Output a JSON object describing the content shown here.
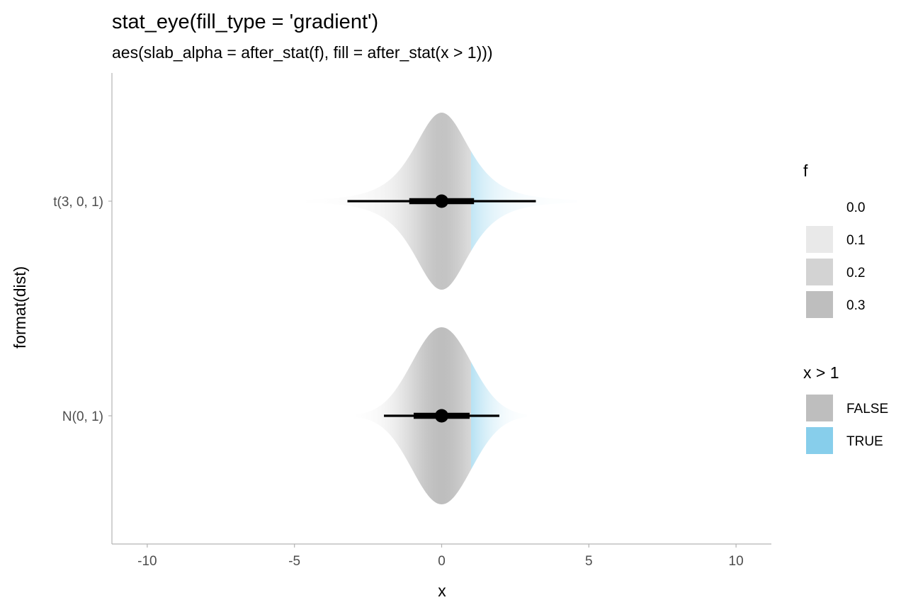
{
  "chart_data": {
    "type": "eye",
    "title": "stat_eye(fill_type = 'gradient')",
    "subtitle": "aes(slab_alpha = after_stat(f), fill = after_stat(x > 1)))",
    "xlabel": "x",
    "ylabel": "format(dist)",
    "xlim": [
      -11.2,
      11.2
    ],
    "x_ticks": [
      -10,
      -5,
      0,
      5,
      10
    ],
    "x_tick_labels": [
      "-10",
      "-5",
      "0",
      "5",
      "10"
    ],
    "categories": [
      "t(3, 0, 1)",
      "N(0, 1)"
    ],
    "grid": false,
    "threshold": 1,
    "colors": {
      "false": "#bebebe",
      "true": "#87ceeb",
      "interval": "#000000",
      "axis": "#b3b3b3"
    },
    "series": [
      {
        "dist": "t",
        "df": 3,
        "mu": 0,
        "sigma": 1,
        "point": 0,
        "interval_66": [
          -1.1,
          1.1
        ],
        "interval_95": [
          -3.2,
          3.2
        ],
        "slab_range": [
          -4.6,
          4.6
        ]
      },
      {
        "dist": "normal",
        "mu": 0,
        "sigma": 1,
        "point": 0,
        "interval_66": [
          -0.95,
          0.95
        ],
        "interval_95": [
          -1.96,
          1.96
        ],
        "slab_range": [
          -2.9,
          2.9
        ]
      }
    ],
    "legend": {
      "position": "right",
      "alpha": {
        "title": "f",
        "labels": [
          "0.0",
          "0.1",
          "0.2",
          "0.3"
        ],
        "values": [
          0.0,
          0.1,
          0.2,
          0.3
        ]
      },
      "fill": {
        "title": "x > 1",
        "labels": [
          "FALSE",
          "TRUE"
        ],
        "colors": [
          "#bebebe",
          "#87ceeb"
        ]
      }
    }
  }
}
